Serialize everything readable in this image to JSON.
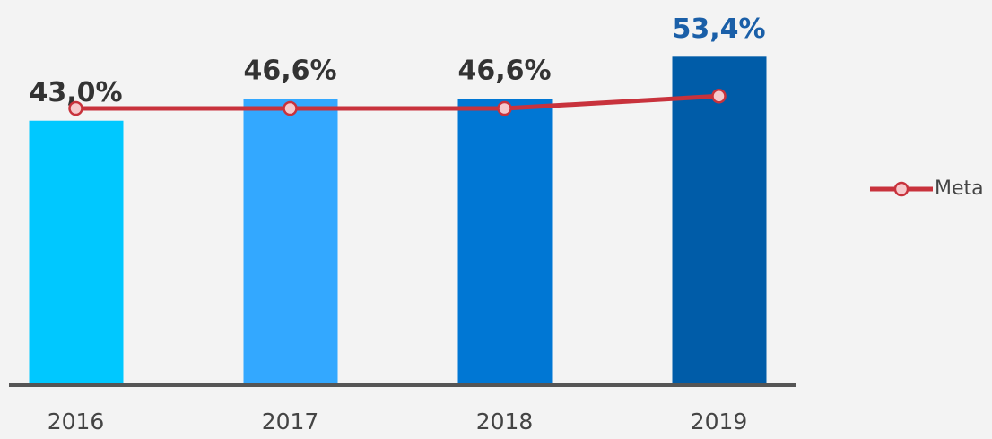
{
  "chart_data": {
    "type": "bar",
    "categories": [
      "2016",
      "2017",
      "2018",
      "2019"
    ],
    "values": [
      43.0,
      46.6,
      46.6,
      53.4
    ],
    "value_labels": [
      "43,0%",
      "46,6%",
      "46,6%",
      "53,4%"
    ],
    "colors": [
      "#00c8ff",
      "#33a8ff",
      "#0077d4",
      "#005ca8"
    ],
    "value_label_colors": [
      "#333333",
      "#333333",
      "#333333",
      "#1a5fa8"
    ],
    "line": {
      "name": "Meta",
      "color": "#c8323c",
      "values": [
        45,
        45,
        45,
        47
      ]
    },
    "ylim": [
      0,
      60
    ]
  }
}
